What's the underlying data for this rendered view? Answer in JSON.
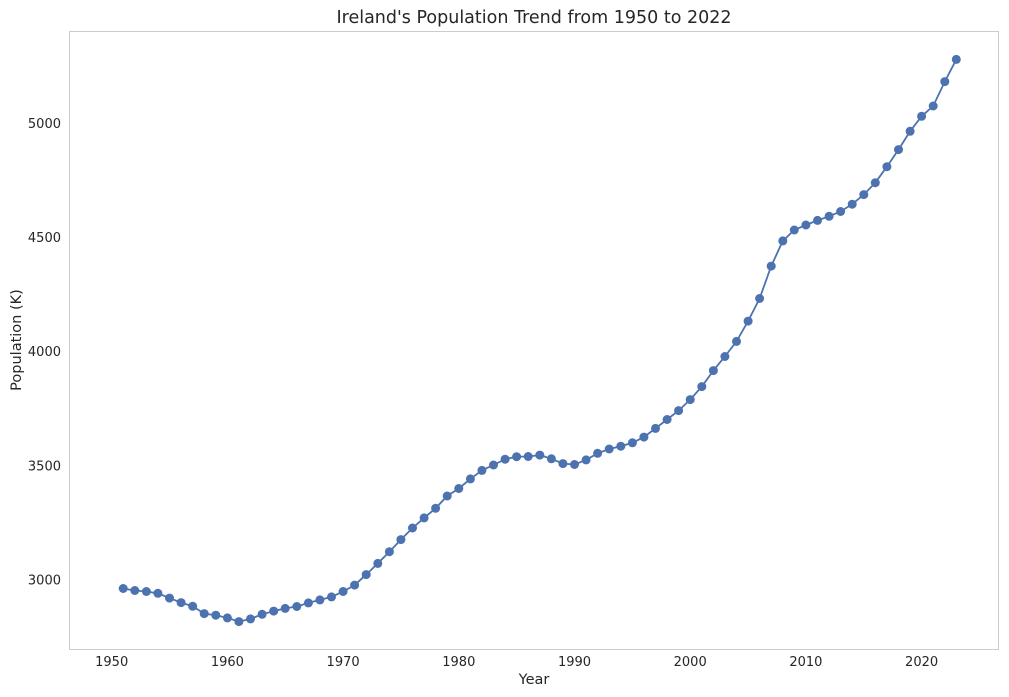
{
  "chart_data": {
    "type": "line",
    "title": "Ireland's Population Trend from 1950 to 2022",
    "xlabel": "Year",
    "ylabel": "Population (K)",
    "xlim": [
      1946.4,
      2026.6
    ],
    "ylim": [
      2698,
      5400
    ],
    "grid": false,
    "x_ticks": [
      1950,
      1960,
      1970,
      1980,
      1990,
      2000,
      2010,
      2020
    ],
    "y_ticks": [
      3000,
      3500,
      4000,
      4500,
      5000
    ],
    "series": [
      {
        "name": "Population",
        "color": "#4c72b0",
        "marker": "circle",
        "x": [
          1951,
          1952,
          1953,
          1954,
          1955,
          1956,
          1957,
          1958,
          1959,
          1960,
          1961,
          1962,
          1963,
          1964,
          1965,
          1966,
          1967,
          1968,
          1969,
          1970,
          1971,
          1972,
          1973,
          1974,
          1975,
          1976,
          1977,
          1978,
          1979,
          1980,
          1981,
          1982,
          1983,
          1984,
          1985,
          1986,
          1987,
          1988,
          1989,
          1990,
          1991,
          1992,
          1993,
          1994,
          1995,
          1996,
          1997,
          1998,
          1999,
          2000,
          2001,
          2002,
          2003,
          2004,
          2005,
          2006,
          2007,
          2008,
          2009,
          2010,
          2011,
          2012,
          2013,
          2014,
          2015,
          2016,
          2017,
          2018,
          2019,
          2020,
          2021,
          2022,
          2023
        ],
        "values": [
          2963,
          2954,
          2950,
          2942,
          2921,
          2901,
          2885,
          2853,
          2846,
          2834,
          2818,
          2830,
          2850,
          2864,
          2876,
          2884,
          2900,
          2913,
          2926,
          2950,
          2978,
          3024,
          3073,
          3124,
          3177,
          3228,
          3272,
          3314,
          3368,
          3401,
          3443,
          3480,
          3504,
          3529,
          3540,
          3541,
          3547,
          3531,
          3510,
          3506,
          3526,
          3555,
          3574,
          3586,
          3601,
          3626,
          3664,
          3703,
          3742,
          3790,
          3847,
          3917,
          3979,
          4045,
          4134,
          4233,
          4375,
          4485,
          4533,
          4555,
          4575,
          4593,
          4614,
          4646,
          4688,
          4740,
          4810,
          4885,
          4965,
          5031,
          5076,
          5183,
          5280
        ]
      }
    ]
  }
}
